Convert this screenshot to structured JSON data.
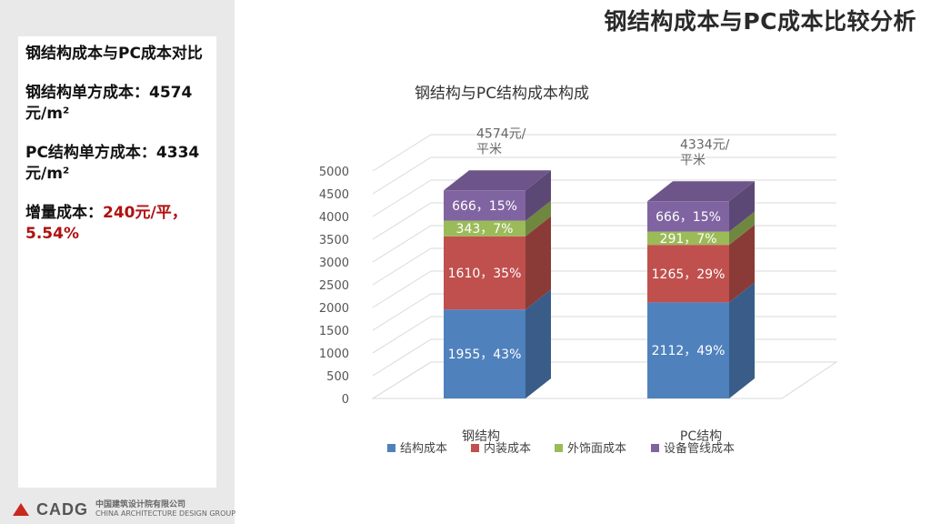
{
  "slide_title": "钢结构成本与PC成本比较分析",
  "left_panel": {
    "heading": "钢结构成本与PC成本对比",
    "steel_unit_label": "钢结构单方成本：4574元/m²",
    "pc_unit_label": "PC结构单方成本：4334元/m²",
    "increment_prefix": "增量成本：",
    "increment_value": "240元/平，5.54%"
  },
  "logo": {
    "mark_text": "CADG",
    "chinese_name": "中国建筑设计院有限公司",
    "english_name": "CHINA ARCHITECTURE DESIGN GROUP"
  },
  "colors": {
    "structure": "#4f81bd",
    "interior": "#c0504d",
    "facade": "#9bbb59",
    "equipment": "#8064a2",
    "highlight": "#b01010"
  },
  "chart_data": {
    "type": "bar",
    "stacked": true,
    "title": "钢结构与PC结构成本构成",
    "categories": [
      "钢结构",
      "PC结构"
    ],
    "ylim": [
      0,
      5000
    ],
    "yticks": [
      "0",
      "500",
      "1000",
      "1500",
      "2000",
      "2500",
      "3000",
      "3500",
      "4000",
      "4500",
      "5000"
    ],
    "totals_labels": [
      "4574元/平米",
      "4334元/平米"
    ],
    "series": [
      {
        "name": "结构成本",
        "color_key": "structure",
        "values": [
          1955,
          2112
        ],
        "labels": [
          "1955，43%",
          "2112，49%"
        ]
      },
      {
        "name": "内装成本",
        "color_key": "interior",
        "values": [
          1610,
          1265
        ],
        "labels": [
          "1610，35%",
          "1265，29%"
        ]
      },
      {
        "name": "外饰面成本",
        "color_key": "facade",
        "values": [
          343,
          291
        ],
        "labels": [
          "343，7%",
          "291，7%"
        ]
      },
      {
        "name": "设备管线成本",
        "color_key": "equipment",
        "values": [
          666,
          666
        ],
        "labels": [
          "666，15%",
          "666，15%"
        ]
      }
    ],
    "legend_position": "bottom"
  }
}
